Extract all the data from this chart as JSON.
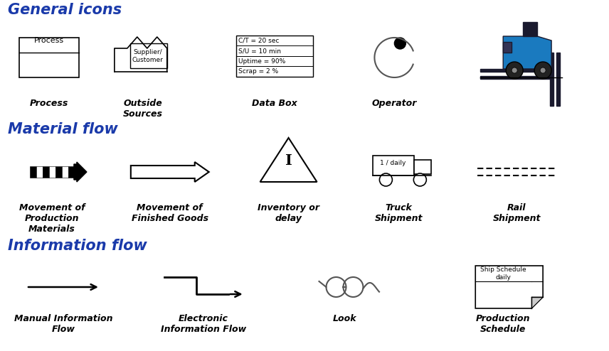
{
  "title_general": "General icons",
  "title_material": "Material flow",
  "title_information": "Information flow",
  "title_color": "#1a3aaa",
  "bg_color": "#ffffff",
  "icon_label_color": "#000000",
  "section_title_fontsize": 15,
  "label_fontsize": 9,
  "databox_text": [
    "C/T = 20 sec",
    "S/U = 10 min",
    "Uptime = 90%",
    "Scrap = 2 %"
  ],
  "process_label": "Process",
  "outside_label": "Outside\nSources",
  "databox_label": "Data Box",
  "operator_label": "Operator",
  "mov_prod_label": "Movement of\nProduction\nMaterials",
  "mov_goods_label": "Movement of\nFinished Goods",
  "inventory_label": "Inventory or\ndelay",
  "truck_label": "Truck\nShipment",
  "rail_label": "Rail\nShipment",
  "manual_info_label": "Manual Information\nFlow",
  "electronic_info_label": "Electronic\nInformation Flow",
  "look_label": "Look",
  "prod_schedule_label": "Production\nSchedule",
  "prod_schedule_header": "Ship Schedule\ndaily",
  "forklift_blue": "#1a7abf",
  "forklift_dark": "#1a1a2e"
}
